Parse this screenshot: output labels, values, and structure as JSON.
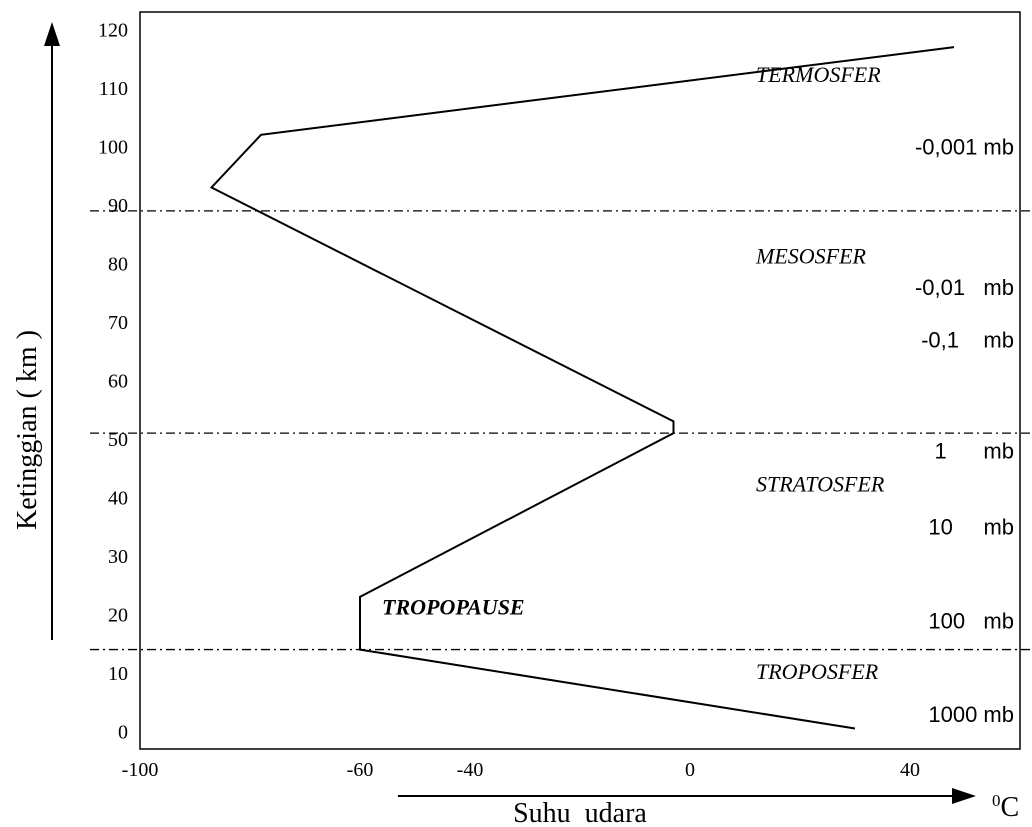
{
  "chart_data": {
    "type": "line",
    "xlabel": "Suhu  udara",
    "xunit_base": "C",
    "xunit_sup": "0",
    "ylabel": "Ketinggian  ( km )",
    "xlim": [
      -100,
      60
    ],
    "ylim": [
      -3,
      123
    ],
    "xticks": [
      {
        "value": -100,
        "label": "-100"
      },
      {
        "value": -60,
        "label": "-60"
      },
      {
        "value": -40,
        "label": "-40"
      },
      {
        "value": 0,
        "label": "0"
      },
      {
        "value": 40,
        "label": "40"
      }
    ],
    "yticks": [
      {
        "value": 0,
        "label": "0"
      },
      {
        "value": 10,
        "label": "10"
      },
      {
        "value": 20,
        "label": "20"
      },
      {
        "value": 30,
        "label": "30"
      },
      {
        "value": 40,
        "label": "40"
      },
      {
        "value": 50,
        "label": "50"
      },
      {
        "value": 60,
        "label": "60"
      },
      {
        "value": 70,
        "label": "70"
      },
      {
        "value": 80,
        "label": "80"
      },
      {
        "value": 90,
        "label": "90"
      },
      {
        "value": 100,
        "label": "100"
      },
      {
        "value": 110,
        "label": "110"
      },
      {
        "value": 120,
        "label": "120"
      }
    ],
    "boundaries": [
      14,
      51,
      89
    ],
    "series": [
      {
        "x": [
          30,
          -60,
          -60,
          -3,
          -3,
          -87,
          -78,
          48
        ],
        "y": [
          0.5,
          14,
          23,
          51,
          53,
          93,
          102,
          117
        ]
      }
    ],
    "layer_labels": [
      {
        "text": "TERMOSFER",
        "x": 12,
        "y": 111,
        "style": "italic"
      },
      {
        "text": "MESOSFER",
        "x": 12,
        "y": 80,
        "style": "italic"
      },
      {
        "text": "STRATOSFER",
        "x": 12,
        "y": 41,
        "style": "italic"
      },
      {
        "text": "TROPOPAUSE",
        "x": -56,
        "y": 20,
        "style": "bold-italic"
      },
      {
        "text": "TROPOSFER",
        "x": 12,
        "y": 9,
        "style": "italic"
      }
    ],
    "pressure_labels": [
      {
        "text": "-0,001 mb",
        "y": 100
      },
      {
        "text": "-0,01   mb",
        "y": 76
      },
      {
        "text": "-0,1    mb",
        "y": 67
      },
      {
        "text": "1      mb",
        "y": 48
      },
      {
        "text": "10     mb",
        "y": 35
      },
      {
        "text": "100   mb",
        "y": 19
      },
      {
        "text": "1000 mb",
        "y": 3
      }
    ]
  }
}
